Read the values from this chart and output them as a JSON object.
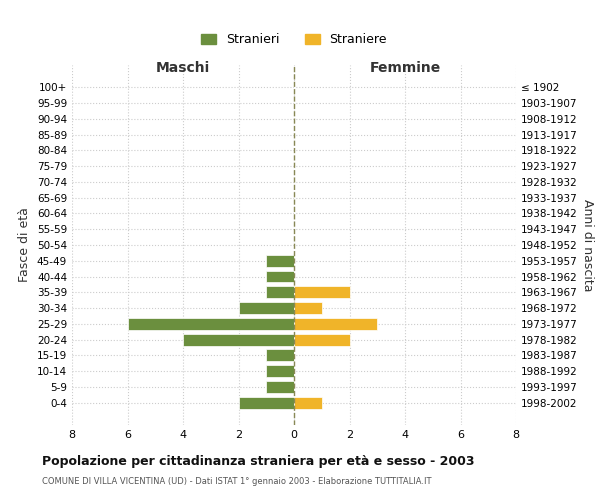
{
  "age_groups": [
    "100+",
    "95-99",
    "90-94",
    "85-89",
    "80-84",
    "75-79",
    "70-74",
    "65-69",
    "60-64",
    "55-59",
    "50-54",
    "45-49",
    "40-44",
    "35-39",
    "30-34",
    "25-29",
    "20-24",
    "15-19",
    "10-14",
    "5-9",
    "0-4"
  ],
  "birth_years": [
    "≤ 1902",
    "1903-1907",
    "1908-1912",
    "1913-1917",
    "1918-1922",
    "1923-1927",
    "1928-1932",
    "1933-1937",
    "1938-1942",
    "1943-1947",
    "1948-1952",
    "1953-1957",
    "1958-1962",
    "1963-1967",
    "1968-1972",
    "1973-1977",
    "1978-1982",
    "1983-1987",
    "1988-1992",
    "1993-1997",
    "1998-2002"
  ],
  "maschi": [
    0,
    0,
    0,
    0,
    0,
    0,
    0,
    0,
    0,
    0,
    0,
    1,
    1,
    1,
    2,
    6,
    4,
    1,
    1,
    1,
    2
  ],
  "femmine": [
    0,
    0,
    0,
    0,
    0,
    0,
    0,
    0,
    0,
    0,
    0,
    0,
    0,
    2,
    1,
    3,
    2,
    0,
    0,
    0,
    1
  ],
  "color_maschi": "#6b8f3e",
  "color_femmine": "#f0b429",
  "title": "Popolazione per cittadinanza straniera per età e sesso - 2003",
  "subtitle": "COMUNE DI VILLA VICENTINA (UD) - Dati ISTAT 1° gennaio 2003 - Elaborazione TUTTITALIA.IT",
  "xlabel_left": "Maschi",
  "xlabel_right": "Femmine",
  "ylabel_left": "Fasce di età",
  "ylabel_right": "Anni di nascita",
  "legend_maschi": "Stranieri",
  "legend_femmine": "Straniere",
  "xlim": 8,
  "background_color": "#ffffff",
  "grid_color": "#cccccc"
}
